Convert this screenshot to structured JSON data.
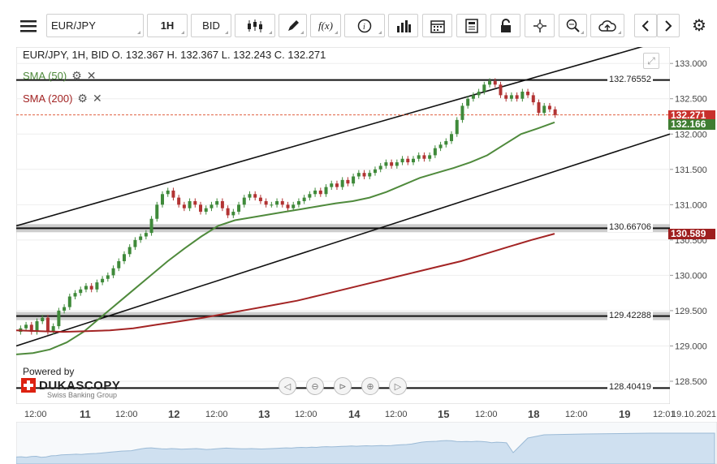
{
  "toolbar": {
    "symbol": "EUR/JPY",
    "timeframe": "1H",
    "price_type": "BID",
    "icons": [
      "menu-icon",
      "candlestick-icon",
      "pencil-icon",
      "function-icon",
      "info-icon",
      "bar-chart-icon",
      "calendar-icon",
      "report-icon",
      "lock-icon",
      "crosshair-icon",
      "zoom-icon",
      "upload-icon",
      "chevron-left-icon",
      "chevron-right-icon",
      "gear-icon"
    ],
    "function_label": "f(x)"
  },
  "header": {
    "info": "EUR/JPY, 1H, BID    O. 132.367 H. 132.367 L. 132.243 C. 132.271",
    "sma50_label": "SMA (50)",
    "sma200_label": "SMA (200)"
  },
  "colors": {
    "sma50": "#4f8a3c",
    "sma200": "#a32424",
    "candle_up": "#3f8a3a",
    "candle_down": "#b23333",
    "current_price_badge": "#c8302c",
    "sma50_badge": "#3f7d32",
    "sma200_badge": "#9e1f1f"
  },
  "yaxis": {
    "ticks": [
      "133.000",
      "132.500",
      "132.000",
      "131.500",
      "131.000",
      "130.500",
      "130.000",
      "129.500",
      "129.000",
      "128.500"
    ],
    "current_price": "132.271",
    "sma50_value": "132.166",
    "sma200_value": "130.589"
  },
  "levels": [
    {
      "label": "132.76552",
      "value": 132.76552
    },
    {
      "label": "130.66706",
      "value": 130.66706
    },
    {
      "label": "129.42288",
      "value": 129.42288
    },
    {
      "label": "128.40419",
      "value": 128.40419
    }
  ],
  "xaxis": {
    "labels": [
      {
        "text": "12:00",
        "bold": false
      },
      {
        "text": "11",
        "bold": true
      },
      {
        "text": "12:00",
        "bold": false
      },
      {
        "text": "12",
        "bold": true
      },
      {
        "text": "12:00",
        "bold": false
      },
      {
        "text": "13",
        "bold": true
      },
      {
        "text": "12:00",
        "bold": false
      },
      {
        "text": "14",
        "bold": true
      },
      {
        "text": "12:00",
        "bold": false
      },
      {
        "text": "15",
        "bold": true
      },
      {
        "text": "12:00",
        "bold": false
      },
      {
        "text": "18",
        "bold": true
      },
      {
        "text": "12:00",
        "bold": false
      },
      {
        "text": "19",
        "bold": true
      },
      {
        "text": "12:01",
        "bold": false
      }
    ],
    "date_right": "19.10.2021"
  },
  "branding": {
    "powered_by": "Powered by",
    "name": "DUKASCOPY",
    "tagline": "Swiss Banking Group"
  },
  "chart_data": {
    "type": "line",
    "y_range": [
      128.2,
      133.2
    ],
    "closes": [
      129.25,
      129.3,
      129.2,
      129.35,
      129.4,
      129.2,
      129.28,
      129.5,
      129.55,
      129.7,
      129.75,
      129.8,
      129.85,
      129.8,
      129.9,
      129.95,
      130.0,
      130.1,
      130.2,
      130.3,
      130.4,
      130.5,
      130.55,
      130.6,
      130.8,
      131.0,
      131.15,
      131.2,
      131.1,
      131.0,
      130.95,
      131.05,
      131.0,
      130.9,
      130.95,
      131.0,
      131.05,
      130.95,
      130.85,
      130.9,
      131.0,
      131.1,
      131.15,
      131.1,
      131.05,
      131.0,
      131.0,
      131.05,
      131.0,
      130.95,
      131.0,
      131.05,
      131.1,
      131.15,
      131.2,
      131.15,
      131.25,
      131.3,
      131.25,
      131.35,
      131.3,
      131.4,
      131.45,
      131.4,
      131.45,
      131.5,
      131.55,
      131.6,
      131.55,
      131.6,
      131.65,
      131.6,
      131.65,
      131.7,
      131.65,
      131.7,
      131.8,
      131.85,
      131.9,
      132.0,
      132.2,
      132.4,
      132.5,
      132.55,
      132.6,
      132.7,
      132.75,
      132.7,
      132.55,
      132.5,
      132.55,
      132.5,
      132.6,
      132.55,
      132.45,
      132.3,
      132.4,
      132.35,
      132.27
    ],
    "sma50": [
      128.88,
      128.9,
      128.95,
      129.05,
      129.2,
      129.4,
      129.6,
      129.8,
      130.0,
      130.2,
      130.38,
      130.55,
      130.7,
      130.78,
      130.82,
      130.86,
      130.9,
      130.94,
      130.98,
      131.02,
      131.05,
      131.1,
      131.18,
      131.28,
      131.38,
      131.45,
      131.52,
      131.6,
      131.7,
      131.85,
      132.0,
      132.08,
      132.166
    ],
    "sma200": [
      129.22,
      129.21,
      129.2,
      129.21,
      129.22,
      129.25,
      129.3,
      129.35,
      129.4,
      129.46,
      129.52,
      129.58,
      129.64,
      129.72,
      129.8,
      129.88,
      129.96,
      130.04,
      130.12,
      130.2,
      130.3,
      130.4,
      130.5,
      130.589
    ],
    "channel": {
      "upper": [
        [
          0,
          130.7
        ],
        [
          1,
          133.35
        ]
      ],
      "lower": [
        [
          0,
          129.0
        ],
        [
          1,
          132.0
        ]
      ]
    }
  }
}
